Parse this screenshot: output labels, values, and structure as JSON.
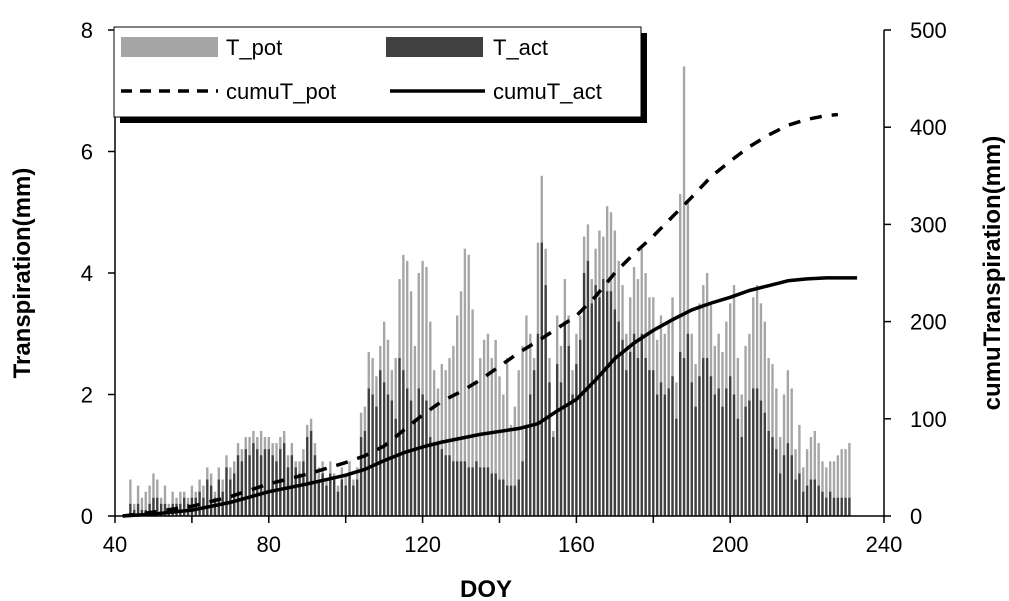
{
  "chart_data": {
    "type": "bar",
    "title": "",
    "xlabel": "DOY",
    "ylabel": "Transpiration(mm)",
    "y2label": "cumuTranspiration(mm)",
    "xlim": [
      40,
      240
    ],
    "ylim": [
      0,
      8
    ],
    "y2lim": [
      0,
      500
    ],
    "x_ticks": [
      "40",
      "80",
      "120",
      "160",
      "200",
      "240"
    ],
    "y_ticks": [
      "0",
      "2",
      "4",
      "6",
      "8"
    ],
    "y2_ticks": [
      "0",
      "100",
      "200",
      "300",
      "400",
      "500"
    ],
    "grid": false,
    "legend_position": "top-left",
    "colors": {
      "T_pot": "#a6a6a6",
      "T_act": "#404040",
      "cumuT_pot": "#000000",
      "cumuT_act": "#000000"
    },
    "legend": [
      {
        "key": "T_pot",
        "label": "T_pot"
      },
      {
        "key": "T_act",
        "label": "T_act"
      },
      {
        "key": "cumuT_pot",
        "label": "cumuT_pot"
      },
      {
        "key": "cumuT_act",
        "label": "cumuT_act"
      }
    ],
    "bar_series": {
      "x": [
        44,
        45,
        46,
        47,
        48,
        49,
        50,
        51,
        52,
        53,
        54,
        55,
        56,
        57,
        58,
        59,
        60,
        61,
        62,
        63,
        64,
        65,
        66,
        67,
        68,
        69,
        70,
        71,
        72,
        73,
        74,
        75,
        76,
        77,
        78,
        79,
        80,
        81,
        82,
        83,
        84,
        85,
        86,
        87,
        88,
        89,
        90,
        91,
        92,
        93,
        94,
        95,
        96,
        97,
        98,
        99,
        100,
        101,
        102,
        103,
        104,
        105,
        106,
        107,
        108,
        109,
        110,
        111,
        112,
        113,
        114,
        115,
        116,
        117,
        118,
        119,
        120,
        121,
        122,
        123,
        124,
        125,
        126,
        127,
        128,
        129,
        130,
        131,
        132,
        133,
        134,
        135,
        136,
        137,
        138,
        139,
        140,
        141,
        142,
        143,
        144,
        145,
        146,
        147,
        148,
        149,
        150,
        151,
        152,
        153,
        154,
        155,
        156,
        157,
        158,
        159,
        160,
        161,
        162,
        163,
        164,
        165,
        166,
        167,
        168,
        169,
        170,
        171,
        172,
        173,
        174,
        175,
        176,
        177,
        178,
        179,
        180,
        181,
        182,
        183,
        184,
        185,
        186,
        187,
        188,
        189,
        190,
        191,
        192,
        193,
        194,
        195,
        196,
        197,
        198,
        199,
        200,
        201,
        202,
        203,
        204,
        205,
        206,
        207,
        208,
        209,
        210,
        211,
        212,
        213,
        214,
        215,
        216,
        217,
        218,
        219,
        220,
        221,
        222,
        223,
        224,
        225,
        226,
        227,
        228,
        229,
        230,
        231,
        232,
        233
      ],
      "T_pot": [
        0.6,
        0.2,
        0.5,
        0.3,
        0.4,
        0.5,
        0.7,
        0.6,
        0.3,
        0.5,
        0.2,
        0.4,
        0.3,
        0.4,
        0.4,
        0.3,
        0.5,
        0.4,
        0.6,
        0.5,
        0.8,
        0.7,
        0.4,
        0.8,
        0.6,
        1.0,
        0.8,
        0.9,
        1.2,
        1.1,
        1.3,
        1.3,
        1.4,
        1.3,
        1.4,
        1.3,
        1.3,
        1.2,
        1.2,
        1.3,
        1.4,
        1.0,
        1.2,
        0.9,
        0.9,
        1.1,
        1.5,
        1.6,
        1.2,
        0.8,
        0.9,
        0.6,
        0.9,
        0.7,
        0.5,
        0.8,
        0.7,
        0.9,
        0.6,
        0.8,
        1.7,
        1.8,
        2.7,
        2.6,
        2.3,
        2.8,
        3.2,
        2.9,
        2.4,
        2.6,
        3.9,
        4.3,
        4.2,
        3.7,
        2.8,
        4.0,
        4.2,
        4.1,
        3.2,
        2.4,
        2.1,
        2.5,
        2.4,
        2.6,
        2.8,
        3.3,
        3.7,
        4.4,
        4.3,
        3.4,
        2.2,
        2.6,
        2.9,
        3.0,
        2.6,
        2.9,
        2.3,
        2.0,
        2.6,
        1.5,
        1.8,
        2.4,
        2.8,
        3.3,
        3.0,
        2.6,
        4.5,
        5.6,
        4.4,
        2.6,
        1.4,
        3.3,
        2.8,
        3.9,
        3.3,
        2.4,
        3.0,
        3.3,
        4.6,
        4.8,
        3.9,
        4.4,
        4.7,
        4.6,
        5.1,
        5.0,
        4.7,
        4.2,
        3.8,
        3.0,
        3.6,
        4.1,
        3.9,
        4.4,
        4.0,
        3.6,
        3.6,
        2.9,
        3.3,
        3.0,
        3.2,
        3.6,
        2.2,
        5.3,
        7.4,
        5.2,
        3.0,
        2.5,
        3.5,
        3.8,
        4.0,
        3.5,
        2.8,
        3.0,
        2.7,
        3.2,
        3.5,
        3.8,
        2.6,
        2.0,
        2.8,
        3.0,
        3.6,
        3.8,
        3.5,
        3.2,
        2.6,
        2.5,
        2.1,
        1.3,
        2.0,
        2.4,
        2.1,
        1.1,
        1.5,
        0.8,
        1.1,
        1.3,
        1.4,
        1.2,
        0.9,
        0.8,
        0.9,
        0.9,
        1.0,
        1.1,
        1.1,
        1.2
      ],
      "T_act": [
        0.2,
        0.1,
        0.2,
        0.1,
        0.1,
        0.2,
        0.3,
        0.3,
        0.2,
        0.2,
        0.1,
        0.2,
        0.2,
        0.2,
        0.3,
        0.2,
        0.3,
        0.3,
        0.4,
        0.3,
        0.6,
        0.5,
        0.3,
        0.6,
        0.4,
        0.8,
        0.6,
        0.7,
        1.0,
        0.9,
        1.1,
        1.0,
        1.2,
        1.1,
        1.0,
        1.1,
        1.1,
        1.0,
        0.9,
        1.1,
        1.2,
        0.8,
        1.0,
        0.8,
        0.7,
        0.9,
        1.3,
        1.4,
        1.0,
        0.6,
        0.7,
        0.5,
        0.7,
        0.6,
        0.4,
        0.6,
        0.5,
        0.7,
        0.5,
        0.6,
        1.3,
        1.4,
        2.1,
        2.0,
        1.8,
        2.4,
        2.2,
        2.0,
        1.9,
        1.6,
        2.6,
        2.4,
        2.1,
        1.9,
        1.6,
        2.1,
        2.0,
        1.9,
        1.3,
        1.2,
        1.2,
        1.1,
        1.0,
        1.0,
        0.9,
        0.9,
        0.9,
        0.9,
        0.8,
        0.8,
        0.9,
        0.8,
        0.8,
        0.8,
        0.7,
        0.7,
        0.6,
        0.6,
        0.5,
        0.5,
        0.5,
        0.6,
        0.9,
        1.5,
        2.0,
        2.4,
        3.0,
        4.5,
        3.8,
        2.2,
        1.3,
        2.5,
        2.2,
        3.2,
        2.8,
        2.0,
        2.5,
        2.9,
        4.0,
        4.2,
        3.5,
        3.8,
        3.6,
        3.9,
        3.7,
        3.7,
        3.4,
        3.2,
        2.9,
        2.4,
        2.7,
        3.0,
        2.6,
        3.0,
        2.6,
        2.4,
        2.4,
        2.0,
        2.2,
        2.0,
        2.1,
        2.3,
        1.6,
        2.7,
        2.6,
        3.0,
        2.2,
        1.8,
        2.3,
        2.6,
        2.6,
        2.3,
        2.0,
        2.1,
        1.8,
        2.1,
        2.3,
        2.0,
        1.6,
        1.3,
        1.8,
        1.9,
        2.1,
        2.1,
        1.9,
        1.7,
        1.4,
        1.3,
        1.1,
        0.7,
        1.0,
        1.2,
        1.0,
        0.6,
        0.7,
        0.4,
        0.5,
        0.6,
        0.6,
        0.5,
        0.4,
        0.3,
        0.4,
        0.3,
        0.3,
        0.3,
        0.3,
        0.3
      ]
    },
    "line_series": [
      {
        "key": "cumuT_pot",
        "style": "dashed",
        "axis": "right",
        "x": [
          42,
          50,
          60,
          70,
          80,
          90,
          100,
          105,
          110,
          115,
          120,
          125,
          130,
          135,
          140,
          145,
          150,
          155,
          160,
          165,
          170,
          175,
          180,
          185,
          190,
          195,
          200,
          205,
          210,
          215,
          220,
          225,
          228
        ],
        "y": [
          0,
          4,
          10,
          20,
          33,
          43,
          55,
          62,
          72,
          88,
          104,
          118,
          128,
          140,
          154,
          168,
          180,
          193,
          206,
          226,
          250,
          270,
          288,
          308,
          328,
          349,
          365,
          380,
          392,
          402,
          408,
          412,
          413
        ]
      },
      {
        "key": "cumuT_act",
        "style": "solid",
        "axis": "right",
        "x": [
          42,
          50,
          60,
          70,
          80,
          90,
          100,
          105,
          110,
          115,
          120,
          125,
          130,
          135,
          140,
          145,
          150,
          155,
          160,
          165,
          170,
          175,
          180,
          185,
          190,
          195,
          200,
          205,
          210,
          215,
          220,
          225,
          230,
          233
        ],
        "y": [
          0,
          2,
          6,
          14,
          25,
          33,
          42,
          48,
          57,
          65,
          71,
          76,
          80,
          84,
          87,
          90,
          95,
          108,
          120,
          140,
          162,
          178,
          191,
          202,
          212,
          219,
          225,
          232,
          237,
          242,
          244,
          245,
          245,
          245
        ]
      }
    ]
  }
}
